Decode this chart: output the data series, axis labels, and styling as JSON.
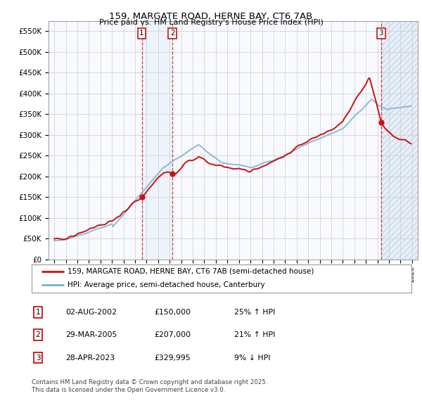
{
  "title1": "159, MARGATE ROAD, HERNE BAY, CT6 7AB",
  "title2": "Price paid vs. HM Land Registry's House Price Index (HPI)",
  "ylabel_ticks": [
    "£0",
    "£50K",
    "£100K",
    "£150K",
    "£200K",
    "£250K",
    "£300K",
    "£350K",
    "£400K",
    "£450K",
    "£500K",
    "£550K"
  ],
  "ytick_vals": [
    0,
    50000,
    100000,
    150000,
    200000,
    250000,
    300000,
    350000,
    400000,
    450000,
    500000,
    550000
  ],
  "xlim_start": 1994.5,
  "xlim_end": 2026.5,
  "ylim": [
    0,
    575000
  ],
  "sale_dates": [
    2002.58,
    2005.24,
    2023.32
  ],
  "sale_prices": [
    150000,
    207000,
    329995
  ],
  "sale_labels": [
    "1",
    "2",
    "3"
  ],
  "legend_line1": "159, MARGATE ROAD, HERNE BAY, CT6 7AB (semi-detached house)",
  "legend_line2": "HPI: Average price, semi-detached house, Canterbury",
  "table_rows": [
    [
      "1",
      "02-AUG-2002",
      "£150,000",
      "25% ↑ HPI"
    ],
    [
      "2",
      "29-MAR-2005",
      "£207,000",
      "21% ↑ HPI"
    ],
    [
      "3",
      "28-APR-2023",
      "£329,995",
      "9% ↓ HPI"
    ]
  ],
  "footer": "Contains HM Land Registry data © Crown copyright and database right 2025.\nThis data is licensed under the Open Government Licence v3.0.",
  "hpi_color": "#7aafd4",
  "price_color": "#cc1111",
  "shade_color": "#dce9f5",
  "bg_color": "#f0f4fa"
}
